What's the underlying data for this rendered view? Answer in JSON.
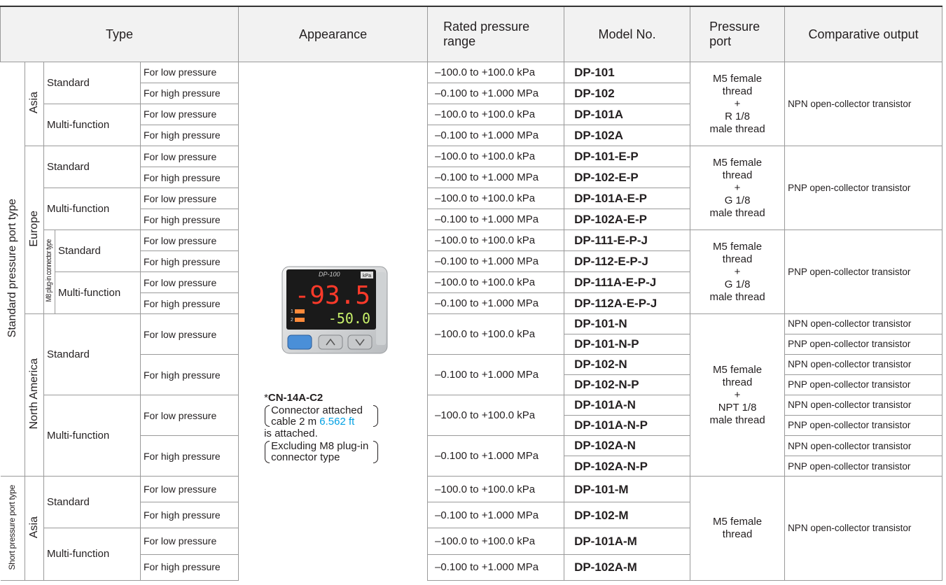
{
  "table": {
    "header": [
      "Type",
      "Appearance",
      "Rated pressure range",
      "Model No.",
      "Pressure port",
      "Comparative output"
    ],
    "groups": [
      "Standard pressure port type",
      "Short pressure port type"
    ],
    "regions": [
      "Asia",
      "Europe",
      "North America",
      "Asia"
    ],
    "connector_type": "M8 plug-in connector type",
    "subtypes": [
      "Standard",
      "Multi-function",
      "Standard",
      "Multi-function",
      "Standard",
      "Multi-function",
      "Standard",
      "Multi-function",
      "Standard",
      "Multi-function"
    ],
    "pressures": [
      "For low pressure",
      "For high pressure",
      "For low pressure",
      "For high pressure",
      "For low pressure",
      "For high pressure",
      "For low pressure",
      "For high pressure",
      "For low pressure",
      "For high pressure",
      "For low pressure",
      "For high pressure",
      "For low pressure",
      "For high pressure",
      "For low pressure",
      "For high pressure",
      "For low pressure",
      "For high pressure",
      "For low pressure",
      "For high pressure"
    ],
    "ranges": [
      "–100.0 to +100.0 kPa",
      "–0.100 to +1.000 MPa",
      "–100.0 to +100.0 kPa",
      "–0.100 to +1.000 MPa",
      "–100.0 to +100.0 kPa",
      "–0.100 to +1.000 MPa",
      "–100.0 to +100.0 kPa",
      "–0.100 to +1.000 MPa",
      "–100.0 to +100.0 kPa",
      "–0.100 to +1.000 MPa",
      "–100.0 to +100.0 kPa",
      "–0.100 to +1.000 MPa",
      "–100.0 to +100.0 kPa",
      "–0.100 to +1.000 MPa",
      "–100.0 to +100.0 kPa",
      "–0.100 to +1.000 MPa",
      "–100.0 to +100.0 kPa",
      "–0.100 to +1.000 MPa",
      "–100.0 to +100.0 kPa",
      "–0.100 to +1.000 MPa"
    ],
    "models": [
      "DP-101",
      "DP-102",
      "DP-101A",
      "DP-102A",
      "DP-101-E-P",
      "DP-102-E-P",
      "DP-101A-E-P",
      "DP-102A-E-P",
      "DP-111-E-P-J",
      "DP-112-E-P-J",
      "DP-111A-E-P-J",
      "DP-112A-E-P-J",
      "DP-101-N",
      "DP-101-N-P",
      "DP-102-N",
      "DP-102-N-P",
      "DP-101A-N",
      "DP-101A-N-P",
      "DP-102A-N",
      "DP-102A-N-P",
      "DP-101-M",
      "DP-102-M",
      "DP-101A-M",
      "DP-102A-M"
    ],
    "ports": [
      [
        "M5 female",
        "thread",
        "+",
        "R 1/8",
        "male thread"
      ],
      [
        "M5 female",
        "thread",
        "+",
        "G 1/8",
        "male thread"
      ],
      [
        "M5 female",
        "thread",
        "+",
        "G 1/8",
        "male thread"
      ],
      [
        "M5 female",
        "thread",
        "+",
        "NPT 1/8",
        "male thread"
      ],
      [
        "M5 female",
        "thread"
      ]
    ],
    "outputs": [
      "NPN open-collector transistor",
      "PNP open-collector transistor",
      "PNP open-collector transistor",
      "NPN open-collector transistor",
      "PNP open-collector transistor",
      "NPN open-collector transistor",
      "PNP open-collector transistor",
      "NPN open-collector transistor",
      "PNP open-collector transistor",
      "NPN open-collector transistor",
      "PNP open-collector transistor",
      "NPN open-collector transistor"
    ],
    "appearance": {
      "display": {
        "brand": "DP-100",
        "unit": "kPa",
        "main": "-93.5",
        "sub": "-50.0",
        "out1": "1",
        "out2": "2"
      },
      "note": {
        "asterisk": "*",
        "model": "CN-14A-C2",
        "cable_1": "Connector attached",
        "cable_2": "cable 2 m",
        "cable_ft": "6.562 ft",
        "attached": "is attached.",
        "excl_1": "Excluding M8 plug-in",
        "excl_2": "connector type"
      }
    }
  }
}
